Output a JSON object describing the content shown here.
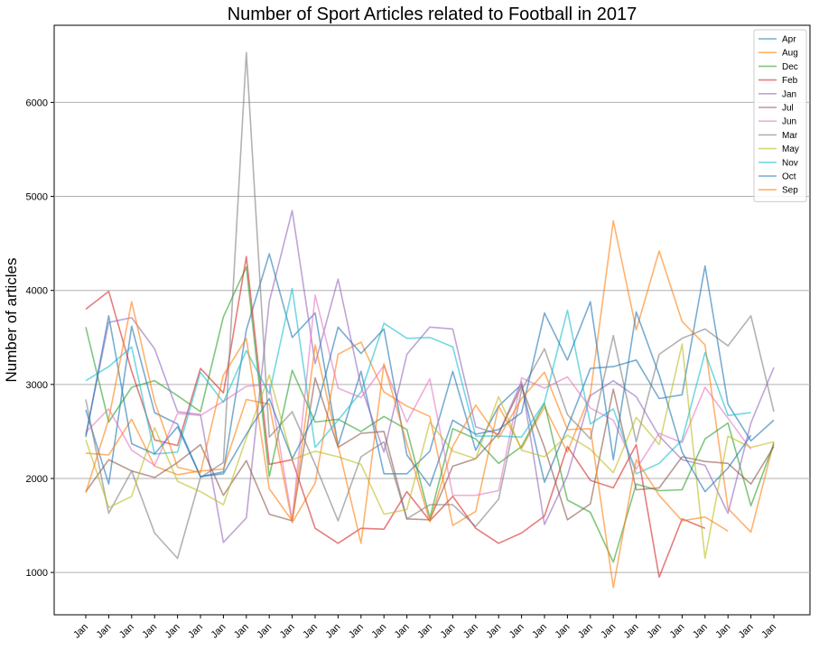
{
  "chart_data": {
    "type": "line",
    "title": "Number of Sport Articles related to Football in 2017",
    "xlabel": "",
    "ylabel": "Number of articles",
    "ylim": [
      550,
      6820
    ],
    "yticks": [
      1000,
      2000,
      3000,
      4000,
      5000,
      6000
    ],
    "categories": [
      "Jan",
      "Jan",
      "Jan",
      "Jan",
      "Jan",
      "Jan",
      "Jan",
      "Jan",
      "Jan",
      "Jan",
      "Jan",
      "Jan",
      "Jan",
      "Jan",
      "Jan",
      "Jan",
      "Jan",
      "Jan",
      "Jan",
      "Jan",
      "Jan",
      "Jan",
      "Jan",
      "Jan",
      "Jan",
      "Jan",
      "Jan",
      "Jan",
      "Jan",
      "Jan",
      "Jan"
    ],
    "grid": "horizontal",
    "legend_position": "top-right",
    "series": [
      {
        "name": "Apr",
        "color": "#1f77b4",
        "values": [
          2730,
          1940,
          3620,
          2700,
          2580,
          2020,
          2070,
          3580,
          4390,
          3500,
          3760,
          2350,
          3140,
          2050,
          2050,
          2290,
          3140,
          2300,
          2770,
          3000,
          1960,
          2540,
          3170,
          3190,
          3260,
          2850,
          2890,
          4260,
          2790,
          2400,
          2620
        ]
      },
      {
        "name": "Aug",
        "color": "#ff7f0e",
        "values": [
          2270,
          2250,
          2630,
          2130,
          2040,
          2080,
          2100,
          2840,
          2790,
          1530,
          1950,
          3320,
          3450,
          2920,
          2770,
          2660,
          1500,
          1650,
          2770,
          2320,
          2760,
          2280,
          2900,
          4740,
          3580,
          4420,
          3670,
          3420,
          1680,
          1430,
          2390
        ]
      },
      {
        "name": "Dec",
        "color": "#2ca02c",
        "values": [
          3610,
          2600,
          2970,
          3040,
          2880,
          2710,
          3720,
          4250,
          2020,
          3150,
          2600,
          2630,
          2500,
          2660,
          2520,
          1580,
          2530,
          2420,
          2160,
          2340,
          2800,
          1770,
          1640,
          1110,
          1940,
          1870,
          1880,
          2420,
          2590,
          1710,
          2370
        ]
      },
      {
        "name": "Feb",
        "color": "#d62728",
        "values": [
          3800,
          3990,
          3140,
          2410,
          2350,
          3170,
          2910,
          4360,
          2150,
          2200,
          1470,
          1310,
          1470,
          1460,
          1860,
          1550,
          1810,
          1470,
          1310,
          1420,
          1600,
          2340,
          1980,
          1900,
          2360,
          950,
          1570,
          1470,
          null,
          null,
          null
        ]
      },
      {
        "name": "Jan",
        "color": "#9467bd",
        "values": [
          2460,
          3660,
          3710,
          3380,
          2710,
          2680,
          1320,
          1580,
          3880,
          4850,
          3220,
          4120,
          2980,
          2280,
          3320,
          3610,
          3590,
          2550,
          2470,
          3030,
          1510,
          2030,
          2880,
          3040,
          2870,
          2450,
          2200,
          2140,
          1630,
          2590,
          3180
        ]
      },
      {
        "name": "Jul",
        "color": "#8c564b",
        "values": [
          1860,
          2200,
          2080,
          2010,
          2170,
          2360,
          1820,
          2190,
          1620,
          1550,
          3070,
          2330,
          2480,
          2500,
          1570,
          1560,
          2130,
          2210,
          2480,
          2980,
          2330,
          1560,
          1730,
          2950,
          1880,
          1900,
          2230,
          2180,
          2160,
          1940,
          2340
        ]
      },
      {
        "name": "Jun",
        "color": "#e377c2",
        "values": [
          2490,
          2740,
          2300,
          2140,
          2690,
          2670,
          2820,
          2980,
          3000,
          1560,
          3950,
          2960,
          2860,
          3200,
          2600,
          3060,
          1820,
          1820,
          1870,
          3070,
          2960,
          3080,
          2750,
          2620,
          2100,
          2480,
          2380,
          2970,
          2640,
          2310,
          null
        ]
      },
      {
        "name": "Mar",
        "color": "#7f7f7f",
        "values": [
          2840,
          1630,
          2080,
          1420,
          1150,
          2010,
          2170,
          6530,
          2440,
          2710,
          2150,
          1550,
          2230,
          2390,
          1570,
          1720,
          1720,
          1490,
          1780,
          2940,
          3380,
          2680,
          2420,
          3520,
          2390,
          3320,
          3490,
          3590,
          3410,
          3730,
          2710
        ]
      },
      {
        "name": "May",
        "color": "#bcbd22",
        "values": [
          2410,
          1690,
          1810,
          2540,
          1970,
          1860,
          1720,
          2430,
          3100,
          2200,
          2290,
          2230,
          2150,
          1620,
          1670,
          2600,
          2290,
          2210,
          2870,
          2300,
          2230,
          2460,
          2310,
          2060,
          2650,
          2360,
          3430,
          1150,
          2450,
          2330,
          2390
        ]
      },
      {
        "name": "Nov",
        "color": "#17becf",
        "values": [
          3040,
          3190,
          3400,
          2260,
          2280,
          3130,
          2810,
          3360,
          2900,
          4020,
          2330,
          2620,
          2920,
          3650,
          3490,
          3500,
          3400,
          2450,
          2450,
          2440,
          2810,
          3790,
          2580,
          2740,
          2050,
          2160,
          2410,
          3340,
          2670,
          2700,
          null
        ]
      },
      {
        "name": "Oct",
        "color": "#1f77b4",
        "values": [
          2440,
          3730,
          2370,
          2260,
          2550,
          2020,
          2050,
          2470,
          2850,
          2210,
          2680,
          3610,
          3330,
          3590,
          2250,
          1920,
          2620,
          2470,
          2520,
          2700,
          3760,
          3260,
          3880,
          2200,
          3770,
          3100,
          2280,
          1860,
          2110,
          2460,
          null
        ]
      },
      {
        "name": "Sep",
        "color": "#ff7f0e",
        "values": [
          1850,
          2630,
          3880,
          2820,
          2120,
          2060,
          3100,
          3490,
          1890,
          1550,
          3420,
          2350,
          1310,
          3220,
          2370,
          1540,
          2340,
          2780,
          2430,
          2850,
          3130,
          2520,
          2530,
          840,
          2200,
          1820,
          1550,
          1590,
          1440,
          null,
          null
        ]
      }
    ]
  }
}
